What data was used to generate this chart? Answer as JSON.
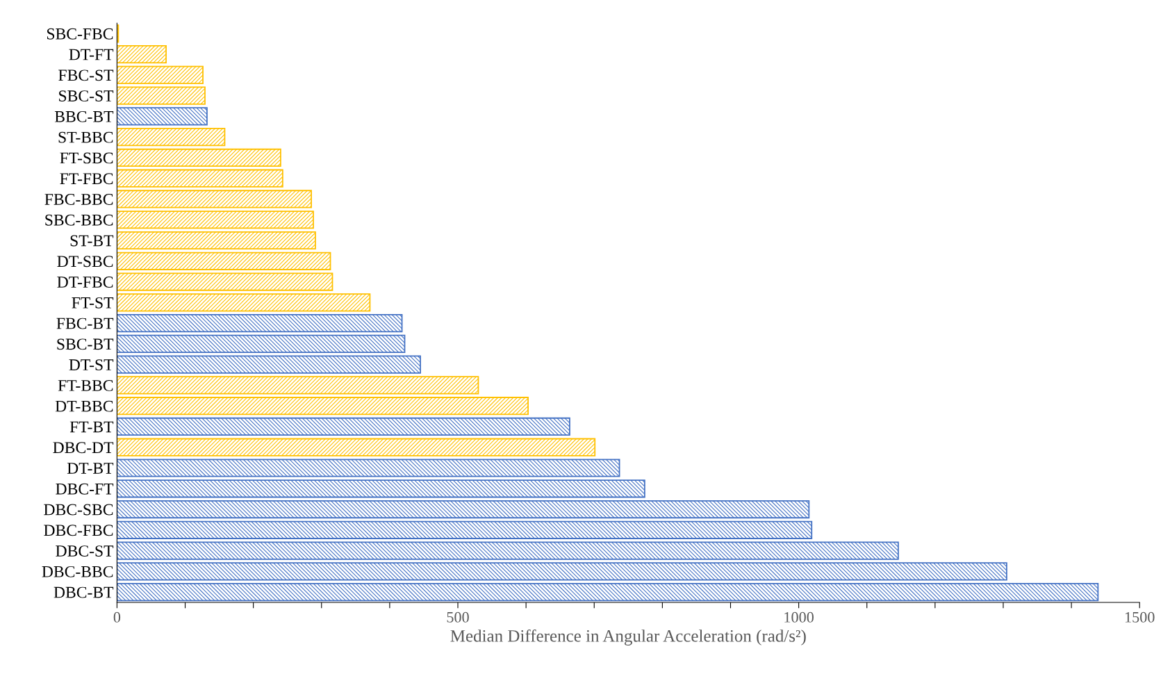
{
  "chart_data": {
    "type": "bar",
    "orientation": "horizontal",
    "xlabel": "Median Difference in Angular Acceleration (rad/s²)",
    "categories": [
      "SBC-FBC",
      "DT-FT",
      "FBC-ST",
      "SBC-ST",
      "BBC-BT",
      "ST-BBC",
      "FT-SBC",
      "FT-FBC",
      "FBC-BBC",
      "SBC-BBC",
      "ST-BT",
      "DT-SBC",
      "DT-FBC",
      "FT-ST",
      "FBC-BT",
      "SBC-BT",
      "DT-ST",
      "FT-BBC",
      "DT-BBC",
      "FT-BT",
      "DBC-DT",
      "DT-BT",
      "DBC-FT",
      "DBC-SBC",
      "DBC-FBC",
      "DBC-ST",
      "DBC-BBC",
      "DBC-BT"
    ],
    "values": [
      2,
      72,
      126,
      129,
      132,
      158,
      240,
      243,
      285,
      288,
      291,
      313,
      316,
      371,
      418,
      422,
      445,
      530,
      603,
      664,
      701,
      737,
      774,
      1015,
      1019,
      1146,
      1305,
      1439
    ],
    "colors": [
      "#ffc000",
      "#ffc000",
      "#ffc000",
      "#ffc000",
      "#4472c4",
      "#ffc000",
      "#ffc000",
      "#ffc000",
      "#ffc000",
      "#ffc000",
      "#ffc000",
      "#ffc000",
      "#ffc000",
      "#ffc000",
      "#4472c4",
      "#4472c4",
      "#4472c4",
      "#ffc000",
      "#ffc000",
      "#4472c4",
      "#ffc000",
      "#4472c4",
      "#4472c4",
      "#4472c4",
      "#4472c4",
      "#4472c4",
      "#4472c4",
      "#4472c4"
    ],
    "xlim": [
      0,
      1500
    ],
    "xticks": [
      0,
      {
        "value": 100,
        "label": null
      },
      {
        "value": 200,
        "label": null
      },
      {
        "value": 300,
        "label": null
      },
      {
        "value": 400,
        "label": null
      },
      500,
      {
        "value": 600,
        "label": null
      },
      {
        "value": 700,
        "label": null
      },
      {
        "value": 800,
        "label": null
      },
      {
        "value": 900,
        "label": null
      },
      1000,
      {
        "value": 1100,
        "label": null
      },
      {
        "value": 1200,
        "label": null
      },
      {
        "value": 1300,
        "label": null
      },
      {
        "value": 1400,
        "label": null
      },
      1500
    ],
    "grid": false,
    "legend": false
  }
}
